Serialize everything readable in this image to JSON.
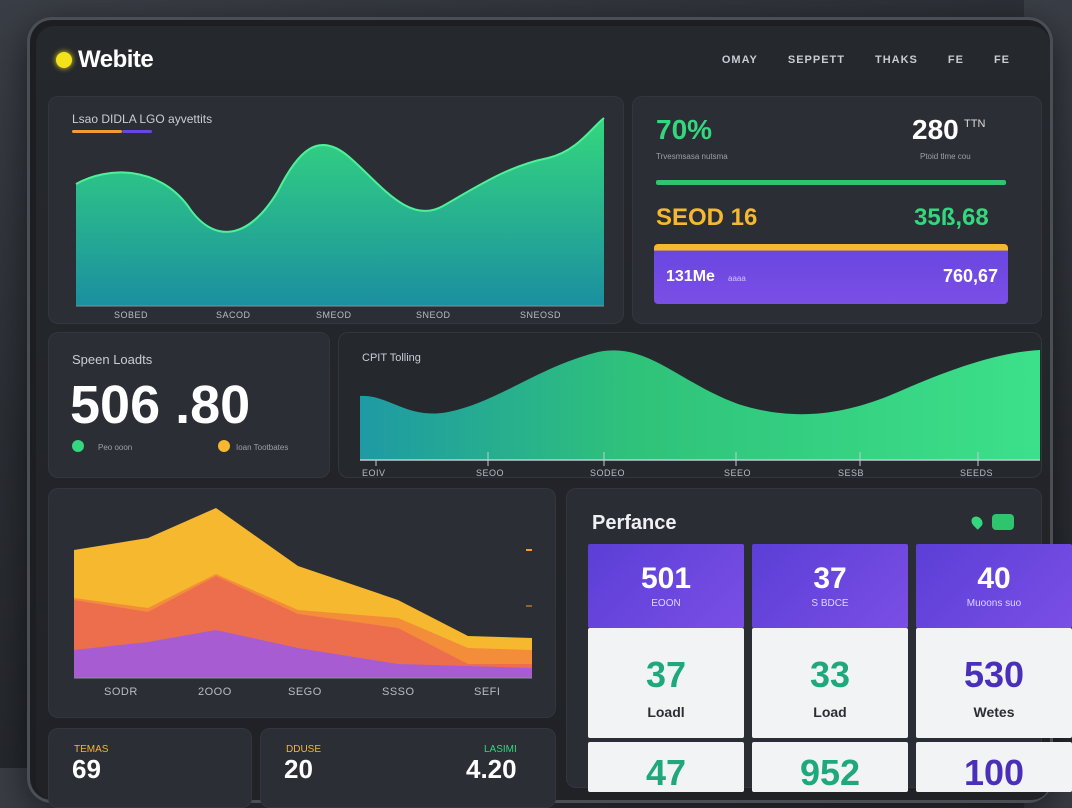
{
  "brand": {
    "name": "Webite",
    "dot_color": "#f4e21c"
  },
  "nav": [
    "OMAY",
    "SEPPETT",
    "THAKS",
    "FE",
    "FE"
  ],
  "traffic_card": {
    "label": "Lsao DIDLA  LGO ayvettits",
    "ticks": [
      "SOBED",
      "SACOD",
      "SMEOD",
      "SNEOD",
      "SNEOSD"
    ]
  },
  "stats_card": {
    "stat1": {
      "value": "70%",
      "label": "Trvesmsasa nutsma"
    },
    "stat2": {
      "value": "280",
      "unit": "TTN",
      "label": "Ptoid  tlme cou"
    },
    "stat3": {
      "value": "SEOD 16"
    },
    "stat4": {
      "value": "35ß,68"
    },
    "bar_label": "131Me",
    "bar_sub": "aaaa",
    "bar_value": "760,67"
  },
  "speed_card": {
    "label": "Speen Loadts",
    "value": "506 .80",
    "legend1": "Peo ooon",
    "legend2": "Ioan Tootbates"
  },
  "timing_card": {
    "label": "CPIT Tolling",
    "ticks": [
      "EOIV",
      "SEOO",
      "SODEO",
      "SEEO",
      "SESB",
      "SEEDS"
    ]
  },
  "layers_card": {
    "ticks": [
      "SODR",
      "2OOO",
      "SEGO",
      "SSSO",
      "SEFI"
    ]
  },
  "perf_card": {
    "title": "Perfance",
    "tiles": [
      {
        "value": "501",
        "label": "EOON"
      },
      {
        "value": "37",
        "label": "S BDCE"
      },
      {
        "value": "40",
        "label": "Muoons suo"
      }
    ],
    "white_tiles": [
      {
        "value": "37",
        "label": "Loadl",
        "color": "#1fa87a"
      },
      {
        "value": "33",
        "label": "Load",
        "color": "#1fa87a"
      },
      {
        "value": "530",
        "label": "Wetes",
        "color": "#4a2fb8"
      }
    ],
    "bottom_values": [
      "47",
      "952",
      "100"
    ]
  },
  "bottom_cards": {
    "b1_label": "TEMAS",
    "b1_value": "69",
    "b2_label": "DDUSE",
    "b2_value": "20",
    "b2_label2": "LASIMI",
    "b2_value2": "4.20"
  },
  "colors": {
    "accent_green": "#34d77e",
    "accent_teal": "#1ea7a0",
    "accent_yellow": "#f5b82e",
    "accent_purple": "#6a46e0",
    "accent_orange": "#f29a36",
    "accent_red": "#e8494a"
  }
}
